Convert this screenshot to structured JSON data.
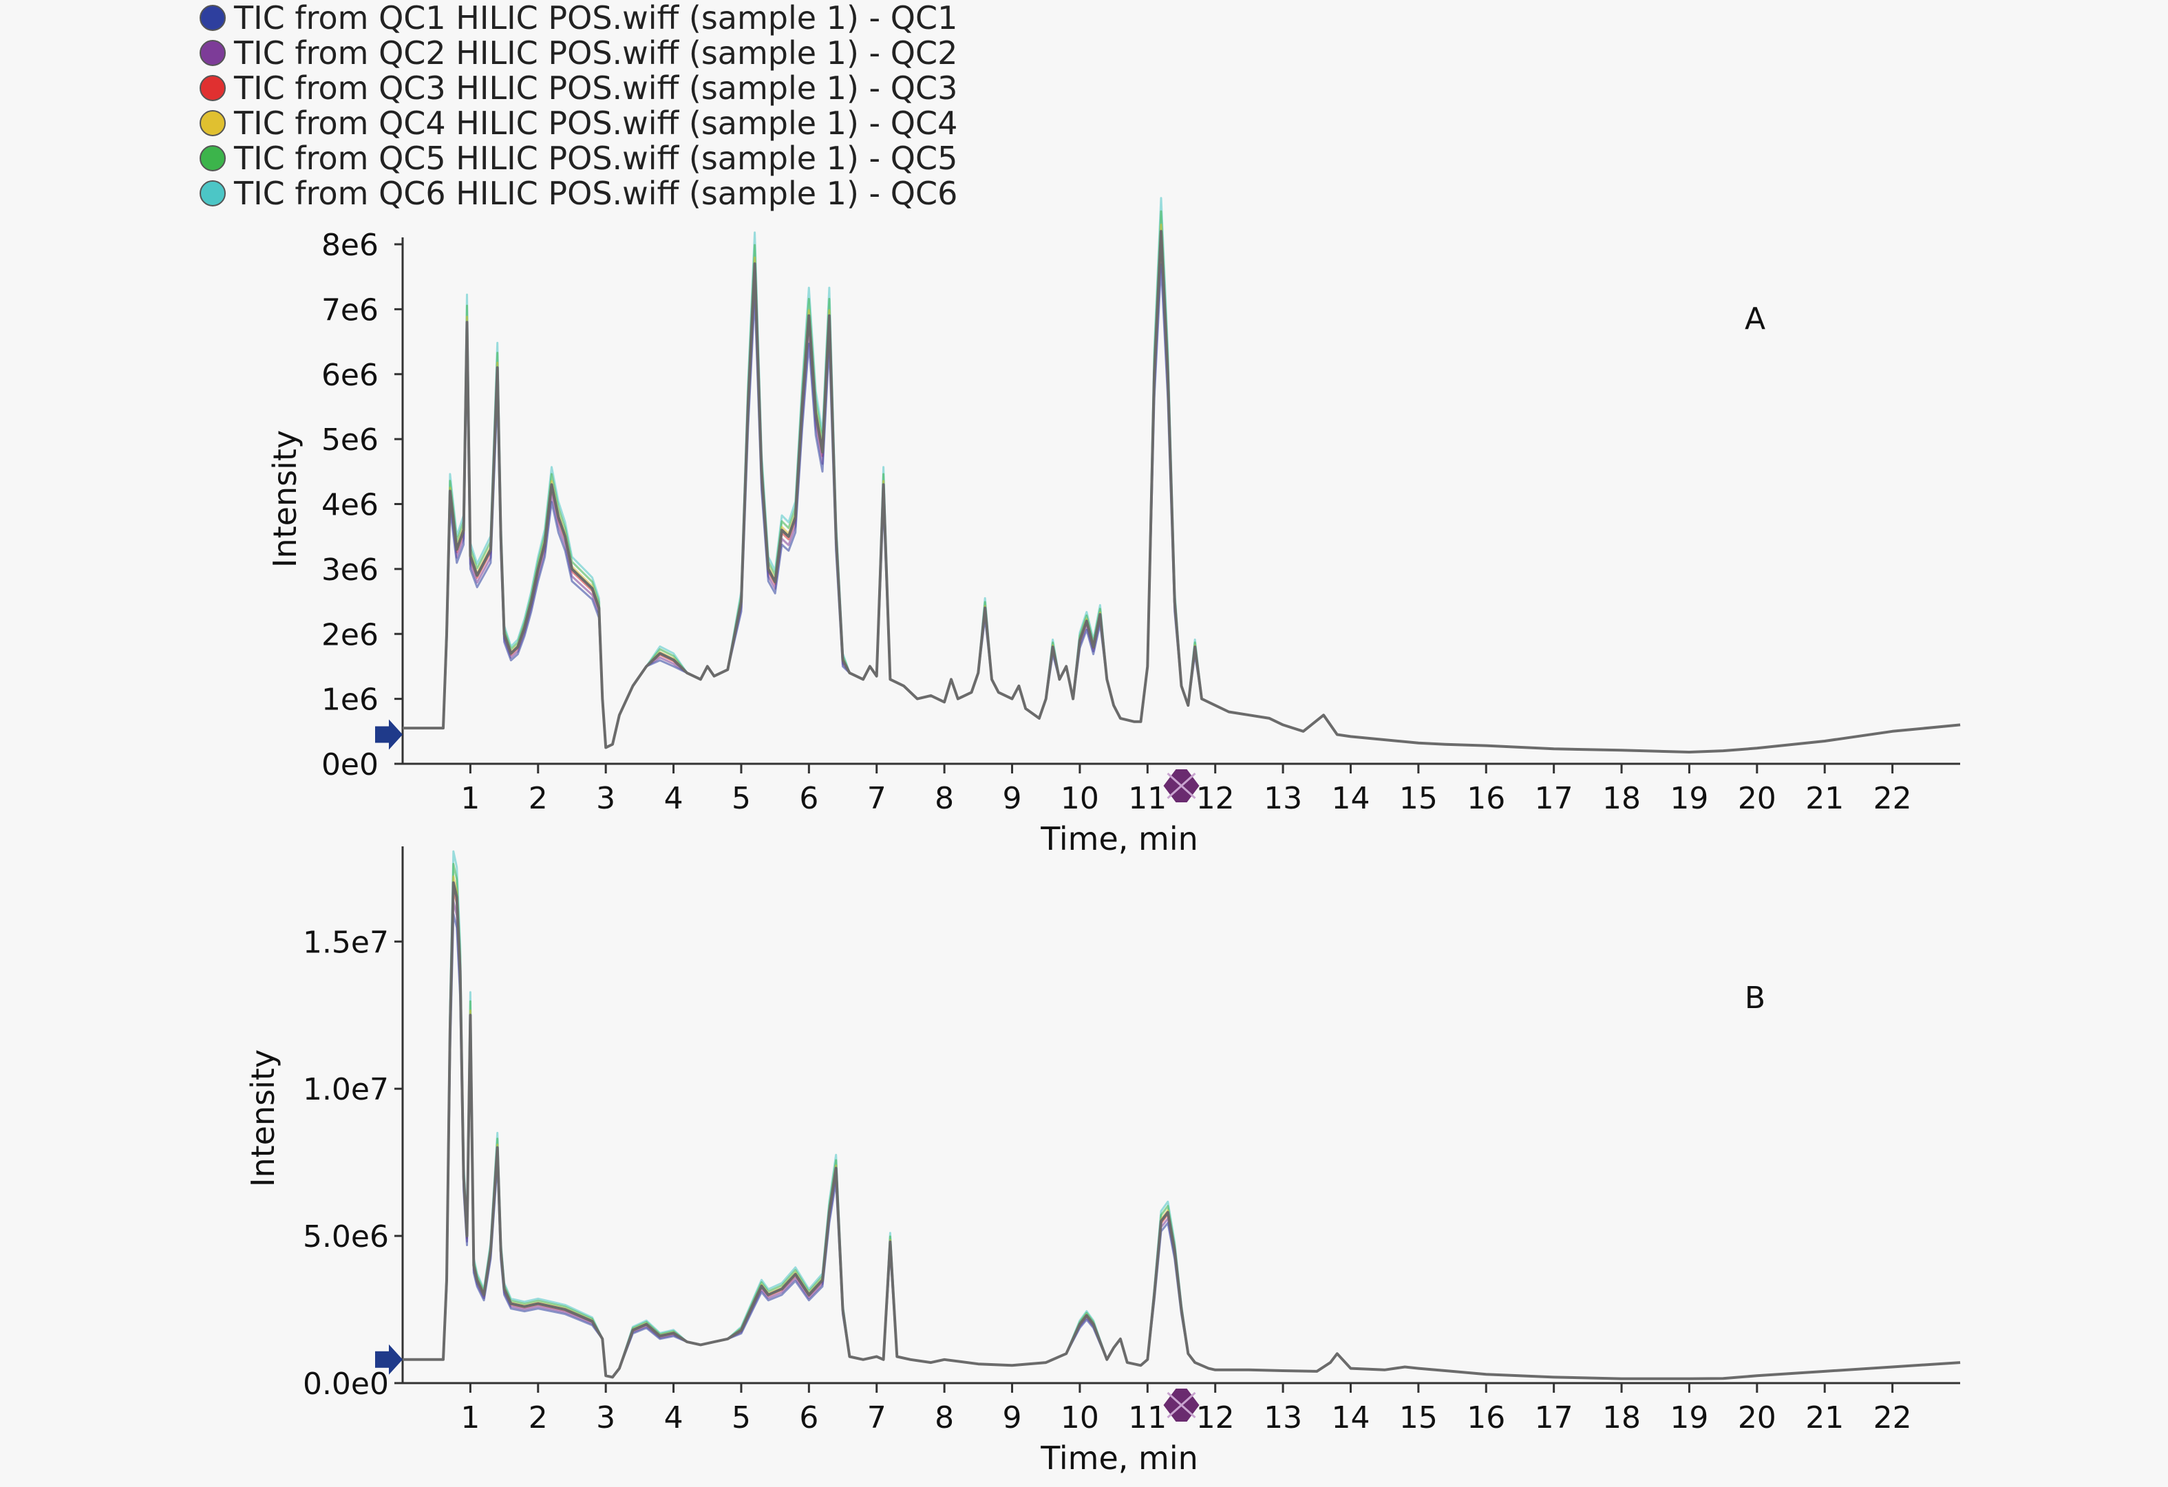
{
  "colors": {
    "QC1": "#2e3f9e",
    "QC2": "#7d3c98",
    "QC3": "#e03030",
    "QC4": "#e0c030",
    "QC5": "#3cb44b",
    "QC6": "#4cc6c6",
    "trace": "#6b6b6b",
    "marker_start": "#1f3a8a",
    "marker_mid": "#6a2b6f"
  },
  "chart_data": [
    {
      "type": "line",
      "panel_label": "A",
      "xlabel": "Time, min",
      "ylabel": "Intensity",
      "xlim": [
        0,
        23
      ],
      "ylim": [
        0,
        8000000
      ],
      "x_ticks": [
        "1",
        "2",
        "3",
        "4",
        "5",
        "6",
        "7",
        "8",
        "9",
        "10",
        "11",
        "12",
        "13",
        "14",
        "15",
        "16",
        "17",
        "18",
        "19",
        "20",
        "21",
        "22"
      ],
      "y_ticks": [
        {
          "label": "0e0",
          "value": 0
        },
        {
          "label": "1e6",
          "value": 1000000
        },
        {
          "label": "2e6",
          "value": 2000000
        },
        {
          "label": "3e6",
          "value": 3000000
        },
        {
          "label": "4e6",
          "value": 4000000
        },
        {
          "label": "5e6",
          "value": 5000000
        },
        {
          "label": "6e6",
          "value": 6000000
        },
        {
          "label": "7e6",
          "value": 7000000
        },
        {
          "label": "8e6",
          "value": 8000000
        }
      ],
      "series": [
        {
          "name": "TIC from QC1 HILIC POS.wiff (sample 1) - QC1",
          "color_key": "QC1"
        },
        {
          "name": "TIC from QC2 HILIC POS.wiff (sample 1) - QC2",
          "color_key": "QC2"
        },
        {
          "name": "TIC from QC3 HILIC POS.wiff (sample 1) - QC3",
          "color_key": "QC3"
        },
        {
          "name": "TIC from QC4 HILIC POS.wiff (sample 1) - QC4",
          "color_key": "QC4"
        },
        {
          "name": "TIC from QC5 HILIC POS.wiff (sample 1) - QC5",
          "color_key": "QC5"
        },
        {
          "name": "TIC from QC6 HILIC POS.wiff (sample 1) - QC6",
          "color_key": "QC6"
        }
      ],
      "trace": {
        "x": [
          0,
          0.6,
          0.65,
          0.7,
          0.8,
          0.9,
          0.95,
          1.0,
          1.1,
          1.2,
          1.3,
          1.4,
          1.45,
          1.5,
          1.6,
          1.7,
          1.8,
          1.9,
          2.0,
          2.1,
          2.2,
          2.3,
          2.4,
          2.5,
          2.6,
          2.7,
          2.8,
          2.9,
          2.95,
          3.0,
          3.1,
          3.2,
          3.4,
          3.6,
          3.8,
          4.0,
          4.2,
          4.4,
          4.5,
          4.6,
          4.8,
          5.0,
          5.1,
          5.2,
          5.3,
          5.4,
          5.5,
          5.6,
          5.7,
          5.8,
          5.9,
          6.0,
          6.1,
          6.2,
          6.3,
          6.4,
          6.5,
          6.6,
          6.8,
          6.9,
          7.0,
          7.1,
          7.2,
          7.4,
          7.6,
          7.8,
          8.0,
          8.1,
          8.2,
          8.4,
          8.5,
          8.6,
          8.7,
          8.8,
          9.0,
          9.1,
          9.2,
          9.4,
          9.5,
          9.6,
          9.7,
          9.8,
          9.9,
          10.0,
          10.1,
          10.2,
          10.3,
          10.4,
          10.5,
          10.6,
          10.8,
          10.9,
          11.0,
          11.1,
          11.2,
          11.3,
          11.4,
          11.5,
          11.6,
          11.7,
          11.8,
          12.0,
          12.2,
          12.5,
          12.8,
          13.0,
          13.3,
          13.6,
          13.8,
          14.0,
          15.0,
          15.4,
          16.0,
          17.0,
          18.0,
          19.0,
          19.5,
          20.0,
          21.0,
          22.0,
          23.0
        ],
        "y": [
          550000,
          550000,
          2000000,
          4200000,
          3300000,
          3600000,
          6800000,
          3200000,
          2900000,
          3100000,
          3300000,
          6100000,
          3500000,
          2000000,
          1700000,
          1800000,
          2100000,
          2500000,
          3000000,
          3400000,
          4300000,
          3800000,
          3500000,
          3000000,
          2900000,
          2800000,
          2700000,
          2400000,
          1000000,
          250000,
          300000,
          750000,
          1200000,
          1500000,
          1700000,
          1600000,
          1400000,
          1300000,
          1500000,
          1350000,
          1450000,
          2500000,
          5500000,
          7700000,
          4500000,
          3000000,
          2800000,
          3600000,
          3500000,
          3800000,
          5500000,
          6900000,
          5400000,
          4800000,
          6900000,
          3500000,
          1600000,
          1400000,
          1300000,
          1500000,
          1350000,
          4300000,
          1300000,
          1200000,
          1000000,
          1050000,
          950000,
          1300000,
          1000000,
          1100000,
          1400000,
          2400000,
          1300000,
          1100000,
          1000000,
          1200000,
          850000,
          700000,
          1000000,
          1800000,
          1300000,
          1500000,
          1000000,
          1900000,
          2200000,
          1800000,
          2300000,
          1300000,
          900000,
          700000,
          650000,
          650000,
          1500000,
          6000000,
          8200000,
          6000000,
          2500000,
          1200000,
          900000,
          1800000,
          1000000,
          900000,
          800000,
          750000,
          700000,
          600000,
          500000,
          750000,
          450000,
          420000,
          320000,
          300000,
          280000,
          230000,
          210000,
          180000,
          200000,
          240000,
          350000,
          500000,
          600000
        ]
      },
      "start_marker_value": 450000,
      "mid_marker_x": 11.5
    },
    {
      "type": "line",
      "panel_label": "B",
      "xlabel": "Time, min",
      "ylabel": "Intensity",
      "xlim": [
        0,
        23
      ],
      "ylim": [
        0,
        18000000
      ],
      "x_ticks": [
        "1",
        "2",
        "3",
        "4",
        "5",
        "6",
        "7",
        "8",
        "9",
        "10",
        "11",
        "12",
        "13",
        "14",
        "15",
        "16",
        "17",
        "18",
        "19",
        "20",
        "21",
        "22"
      ],
      "y_ticks": [
        {
          "label": "0.0e0",
          "value": 0
        },
        {
          "label": "5.0e6",
          "value": 5000000
        },
        {
          "label": "1.0e7",
          "value": 10000000
        },
        {
          "label": "1.5e7",
          "value": 15000000
        }
      ],
      "trace": {
        "x": [
          0,
          0.6,
          0.65,
          0.7,
          0.75,
          0.8,
          0.85,
          0.9,
          0.95,
          1.0,
          1.05,
          1.1,
          1.2,
          1.3,
          1.4,
          1.45,
          1.5,
          1.6,
          1.8,
          2.0,
          2.2,
          2.4,
          2.6,
          2.8,
          2.95,
          3.0,
          3.1,
          3.2,
          3.4,
          3.6,
          3.8,
          4.0,
          4.2,
          4.4,
          4.6,
          4.8,
          5.0,
          5.2,
          5.3,
          5.4,
          5.6,
          5.8,
          6.0,
          6.2,
          6.3,
          6.4,
          6.5,
          6.6,
          6.8,
          7.0,
          7.1,
          7.2,
          7.3,
          7.5,
          7.8,
          8.0,
          8.5,
          9.0,
          9.5,
          9.8,
          10.0,
          10.1,
          10.2,
          10.4,
          10.5,
          10.6,
          10.7,
          10.9,
          11.0,
          11.1,
          11.2,
          11.3,
          11.4,
          11.5,
          11.6,
          11.7,
          11.9,
          12.0,
          12.5,
          13.0,
          13.5,
          13.7,
          13.8,
          14.0,
          14.5,
          14.8,
          15.0,
          15.5,
          16.0,
          17.0,
          18.0,
          19.0,
          19.5,
          20.0,
          21.0,
          22.0,
          23.0
        ],
        "y": [
          800000,
          800000,
          3500000,
          12000000,
          17000000,
          16500000,
          14000000,
          7000000,
          5000000,
          12500000,
          4000000,
          3500000,
          3000000,
          4500000,
          8000000,
          4500000,
          3200000,
          2700000,
          2600000,
          2700000,
          2600000,
          2500000,
          2300000,
          2100000,
          1500000,
          250000,
          200000,
          500000,
          1800000,
          2000000,
          1600000,
          1700000,
          1400000,
          1300000,
          1400000,
          1500000,
          1800000,
          2800000,
          3300000,
          3000000,
          3200000,
          3700000,
          3000000,
          3500000,
          5800000,
          7300000,
          2500000,
          900000,
          800000,
          900000,
          800000,
          4800000,
          900000,
          800000,
          700000,
          800000,
          650000,
          600000,
          700000,
          1000000,
          2000000,
          2300000,
          2000000,
          800000,
          1200000,
          1500000,
          700000,
          600000,
          800000,
          3000000,
          5500000,
          5800000,
          4500000,
          2500000,
          1000000,
          700000,
          500000,
          450000,
          450000,
          420000,
          400000,
          700000,
          1000000,
          500000,
          450000,
          550000,
          500000,
          400000,
          300000,
          200000,
          150000,
          150000,
          160000,
          250000,
          400000,
          550000,
          700000
        ]
      },
      "start_marker_value": 800000,
      "mid_marker_x": 11.5
    }
  ]
}
